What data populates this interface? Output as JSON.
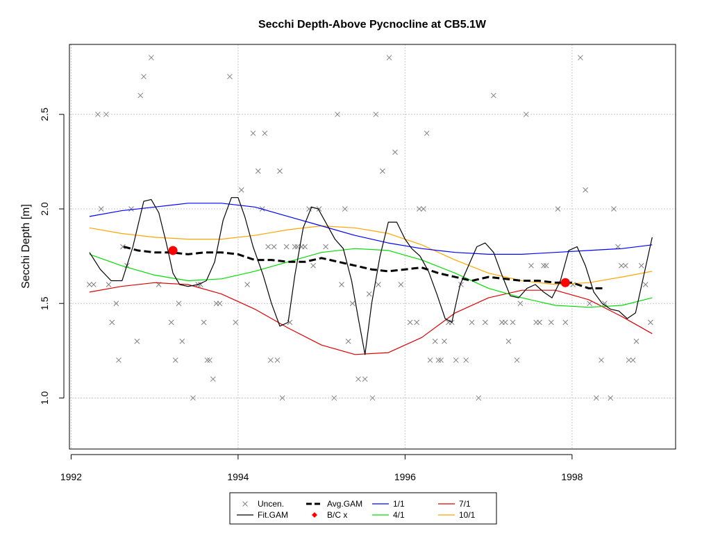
{
  "chart_data": {
    "type": "scatter",
    "title": "Secchi Depth-Above Pycnocline at CB5.1W",
    "xlabel": "",
    "ylabel": "Secchi Depth [m]",
    "xlim": [
      1991.98,
      1999.24
    ],
    "ylim": [
      0.73,
      2.87
    ],
    "x_ticks": [
      1992,
      1994,
      1996,
      1998
    ],
    "x_tick_labels": [
      "1992",
      "1994",
      "1996",
      "1998"
    ],
    "y_ticks": [
      1.0,
      1.5,
      2.0,
      2.5
    ],
    "y_tick_labels": [
      "1.0",
      "1.5",
      "2.0",
      "2.5"
    ],
    "grid": true,
    "legend_position": "bottom",
    "legend": [
      {
        "label": "Uncen.",
        "symbol": "x",
        "color": "#808080"
      },
      {
        "label": "Fit.GAM",
        "symbol": "line",
        "color": "#000000"
      },
      {
        "label": "Avg.GAM",
        "symbol": "dashed",
        "color": "#000000"
      },
      {
        "label": "B/C x",
        "symbol": "diamond",
        "color": "#ff0000"
      },
      {
        "label": "1/1",
        "symbol": "line",
        "color": "#0000ff"
      },
      {
        "label": "4/1",
        "symbol": "line",
        "color": "#00dd00"
      },
      {
        "label": "7/1",
        "symbol": "line",
        "color": "#dd0000"
      },
      {
        "label": "10/1",
        "symbol": "line",
        "color": "#ffa500"
      }
    ],
    "series": [
      {
        "name": "Uncen.",
        "kind": "points",
        "color": "#808080",
        "x": [
          1992.22,
          1992.27,
          1992.32,
          1992.36,
          1992.42,
          1992.45,
          1992.49,
          1992.54,
          1992.57,
          1992.62,
          1992.67,
          1992.72,
          1992.79,
          1992.83,
          1992.87,
          1992.96,
          1993.05,
          1993.2,
          1993.25,
          1993.29,
          1993.33,
          1993.46,
          1993.52,
          1993.55,
          1993.59,
          1993.63,
          1993.66,
          1993.7,
          1993.74,
          1993.78,
          1993.9,
          1993.97,
          1994.04,
          1994.11,
          1994.18,
          1994.24,
          1994.29,
          1994.32,
          1994.36,
          1994.39,
          1994.43,
          1994.47,
          1994.5,
          1994.53,
          1994.58,
          1994.62,
          1994.68,
          1994.71,
          1994.76,
          1994.8,
          1994.85,
          1994.9,
          1994.97,
          1995.05,
          1995.15,
          1995.19,
          1995.24,
          1995.28,
          1995.32,
          1995.37,
          1995.44,
          1995.52,
          1995.57,
          1995.61,
          1995.65,
          1995.68,
          1995.73,
          1995.81,
          1995.88,
          1995.95,
          1996.06,
          1996.14,
          1996.17,
          1996.22,
          1996.26,
          1996.3,
          1996.36,
          1996.4,
          1996.43,
          1996.47,
          1996.52,
          1996.56,
          1996.61,
          1996.67,
          1996.73,
          1996.8,
          1996.88,
          1996.96,
          1997.06,
          1997.16,
          1997.2,
          1997.24,
          1997.29,
          1997.34,
          1997.38,
          1997.45,
          1997.51,
          1997.57,
          1997.61,
          1997.66,
          1997.69,
          1997.75,
          1997.83,
          1997.92,
          1998.01,
          1998.1,
          1998.16,
          1998.21,
          1998.29,
          1998.35,
          1998.39,
          1998.46,
          1998.5,
          1998.55,
          1998.59,
          1998.64,
          1998.68,
          1998.73,
          1998.77,
          1998.83,
          1998.88,
          1998.94
        ],
        "y": [
          1.6,
          1.6,
          2.5,
          2.0,
          2.5,
          1.6,
          1.4,
          1.5,
          1.2,
          1.8,
          1.7,
          2.0,
          1.3,
          2.6,
          2.7,
          2.8,
          1.6,
          1.4,
          1.2,
          1.5,
          1.3,
          1.0,
          1.6,
          1.6,
          1.4,
          1.2,
          1.2,
          1.1,
          1.5,
          1.5,
          2.7,
          1.4,
          2.1,
          1.6,
          2.4,
          2.2,
          2.0,
          2.4,
          1.8,
          1.2,
          1.8,
          1.2,
          2.2,
          1.0,
          1.8,
          1.4,
          1.8,
          1.8,
          1.8,
          1.8,
          2.0,
          1.7,
          2.0,
          1.8,
          1.0,
          2.5,
          1.6,
          2.0,
          1.3,
          1.5,
          1.1,
          1.1,
          1.55,
          1.0,
          2.5,
          1.6,
          2.2,
          2.8,
          2.3,
          1.6,
          1.4,
          1.4,
          2.0,
          2.0,
          2.4,
          1.2,
          1.3,
          1.2,
          1.2,
          1.3,
          1.4,
          1.4,
          1.2,
          1.6,
          1.2,
          1.4,
          1.0,
          1.4,
          2.6,
          1.4,
          1.4,
          1.3,
          1.4,
          1.2,
          1.5,
          2.5,
          1.7,
          1.4,
          1.4,
          1.7,
          1.7,
          1.4,
          2.0,
          1.4,
          1.6,
          2.8,
          2.1,
          1.5,
          1.0,
          1.2,
          1.5,
          1.0,
          2.0,
          1.8,
          1.7,
          1.7,
          1.2,
          1.2,
          1.3,
          1.7,
          1.6,
          1.4
        ]
      },
      {
        "name": "Fit.GAM",
        "kind": "line",
        "color": "#000000",
        "x": [
          1992.22,
          1992.35,
          1992.48,
          1992.61,
          1992.74,
          1992.87,
          1992.96,
          1993.05,
          1993.14,
          1993.22,
          1993.3,
          1993.4,
          1993.52,
          1993.62,
          1993.72,
          1993.82,
          1993.92,
          1994.0,
          1994.08,
          1994.18,
          1994.3,
          1994.4,
          1994.5,
          1994.6,
          1994.68,
          1994.78,
          1994.88,
          1994.96,
          1995.06,
          1995.16,
          1995.26,
          1995.36,
          1995.44,
          1995.52,
          1995.6,
          1995.7,
          1995.8,
          1995.9,
          1996.0,
          1996.08,
          1996.18,
          1996.28,
          1996.38,
          1996.48,
          1996.56,
          1996.66,
          1996.76,
          1996.86,
          1996.96,
          1997.06,
          1997.16,
          1997.26,
          1997.36,
          1997.46,
          1997.56,
          1997.66,
          1997.76,
          1997.86,
          1997.96,
          1998.06,
          1998.16,
          1998.26,
          1998.36,
          1998.46,
          1998.56,
          1998.66,
          1998.76,
          1998.86,
          1998.96
        ],
        "y": [
          1.77,
          1.68,
          1.62,
          1.62,
          1.8,
          2.04,
          2.05,
          1.98,
          1.82,
          1.66,
          1.6,
          1.59,
          1.6,
          1.62,
          1.72,
          1.94,
          2.06,
          2.06,
          1.96,
          1.8,
          1.65,
          1.5,
          1.38,
          1.4,
          1.65,
          1.9,
          2.01,
          2.0,
          1.92,
          1.84,
          1.79,
          1.62,
          1.42,
          1.23,
          1.5,
          1.75,
          1.93,
          1.93,
          1.84,
          1.79,
          1.75,
          1.67,
          1.55,
          1.42,
          1.4,
          1.6,
          1.7,
          1.8,
          1.82,
          1.77,
          1.65,
          1.54,
          1.53,
          1.58,
          1.6,
          1.56,
          1.53,
          1.62,
          1.78,
          1.8,
          1.7,
          1.56,
          1.5,
          1.47,
          1.46,
          1.42,
          1.45,
          1.65,
          1.85
        ]
      },
      {
        "name": "Avg.GAM",
        "kind": "dashed",
        "color": "#000000",
        "x": [
          1992.63,
          1992.8,
          1993.0,
          1993.2,
          1993.4,
          1993.6,
          1993.8,
          1994.0,
          1994.2,
          1994.4,
          1994.6,
          1994.8,
          1995.0,
          1995.2,
          1995.4,
          1995.6,
          1995.8,
          1996.0,
          1996.2,
          1996.4,
          1996.6,
          1996.8,
          1997.0,
          1997.2,
          1997.4,
          1997.6,
          1997.8,
          1998.0,
          1998.2,
          1998.4
        ],
        "y": [
          1.8,
          1.78,
          1.77,
          1.77,
          1.76,
          1.77,
          1.77,
          1.76,
          1.73,
          1.73,
          1.72,
          1.72,
          1.74,
          1.72,
          1.7,
          1.68,
          1.67,
          1.68,
          1.69,
          1.66,
          1.64,
          1.62,
          1.64,
          1.63,
          1.62,
          1.62,
          1.61,
          1.61,
          1.58,
          1.58
        ]
      },
      {
        "name": "B/C x",
        "kind": "big-points",
        "color": "#ff0000",
        "x": [
          1993.22,
          1997.92
        ],
        "y": [
          1.78,
          1.61
        ]
      },
      {
        "name": "1/1",
        "kind": "line",
        "color": "#0000ff",
        "x": [
          1992.22,
          1992.6,
          1993.0,
          1993.4,
          1993.8,
          1994.2,
          1994.6,
          1995.0,
          1995.4,
          1995.8,
          1996.2,
          1996.6,
          1997.0,
          1997.4,
          1997.8,
          1998.2,
          1998.6,
          1998.96
        ],
        "y": [
          1.96,
          1.99,
          2.01,
          2.03,
          2.03,
          2.01,
          1.96,
          1.91,
          1.86,
          1.82,
          1.79,
          1.77,
          1.76,
          1.76,
          1.77,
          1.78,
          1.79,
          1.81
        ]
      },
      {
        "name": "4/1",
        "kind": "line",
        "color": "#00dd00",
        "x": [
          1992.22,
          1992.6,
          1993.0,
          1993.4,
          1993.8,
          1994.2,
          1994.6,
          1995.0,
          1995.4,
          1995.8,
          1996.2,
          1996.6,
          1997.0,
          1997.4,
          1997.8,
          1998.2,
          1998.6,
          1998.96
        ],
        "y": [
          1.76,
          1.7,
          1.65,
          1.62,
          1.63,
          1.67,
          1.72,
          1.77,
          1.79,
          1.78,
          1.73,
          1.66,
          1.58,
          1.53,
          1.49,
          1.48,
          1.49,
          1.53
        ]
      },
      {
        "name": "7/1",
        "kind": "line",
        "color": "#dd0000",
        "x": [
          1992.22,
          1992.6,
          1993.0,
          1993.4,
          1993.8,
          1994.2,
          1994.6,
          1995.0,
          1995.4,
          1995.8,
          1996.2,
          1996.6,
          1997.0,
          1997.4,
          1997.8,
          1998.2,
          1998.6,
          1998.96
        ],
        "y": [
          1.56,
          1.59,
          1.61,
          1.6,
          1.55,
          1.47,
          1.37,
          1.28,
          1.23,
          1.24,
          1.32,
          1.45,
          1.53,
          1.57,
          1.57,
          1.52,
          1.43,
          1.34
        ]
      },
      {
        "name": "10/1",
        "kind": "line",
        "color": "#ffa500",
        "x": [
          1992.22,
          1992.6,
          1993.0,
          1993.4,
          1993.8,
          1994.2,
          1994.6,
          1995.0,
          1995.4,
          1995.8,
          1996.2,
          1996.6,
          1997.0,
          1997.4,
          1997.8,
          1998.2,
          1998.6,
          1998.96
        ],
        "y": [
          1.9,
          1.87,
          1.85,
          1.84,
          1.84,
          1.86,
          1.89,
          1.91,
          1.9,
          1.87,
          1.81,
          1.73,
          1.66,
          1.62,
          1.6,
          1.61,
          1.64,
          1.67
        ]
      }
    ]
  }
}
